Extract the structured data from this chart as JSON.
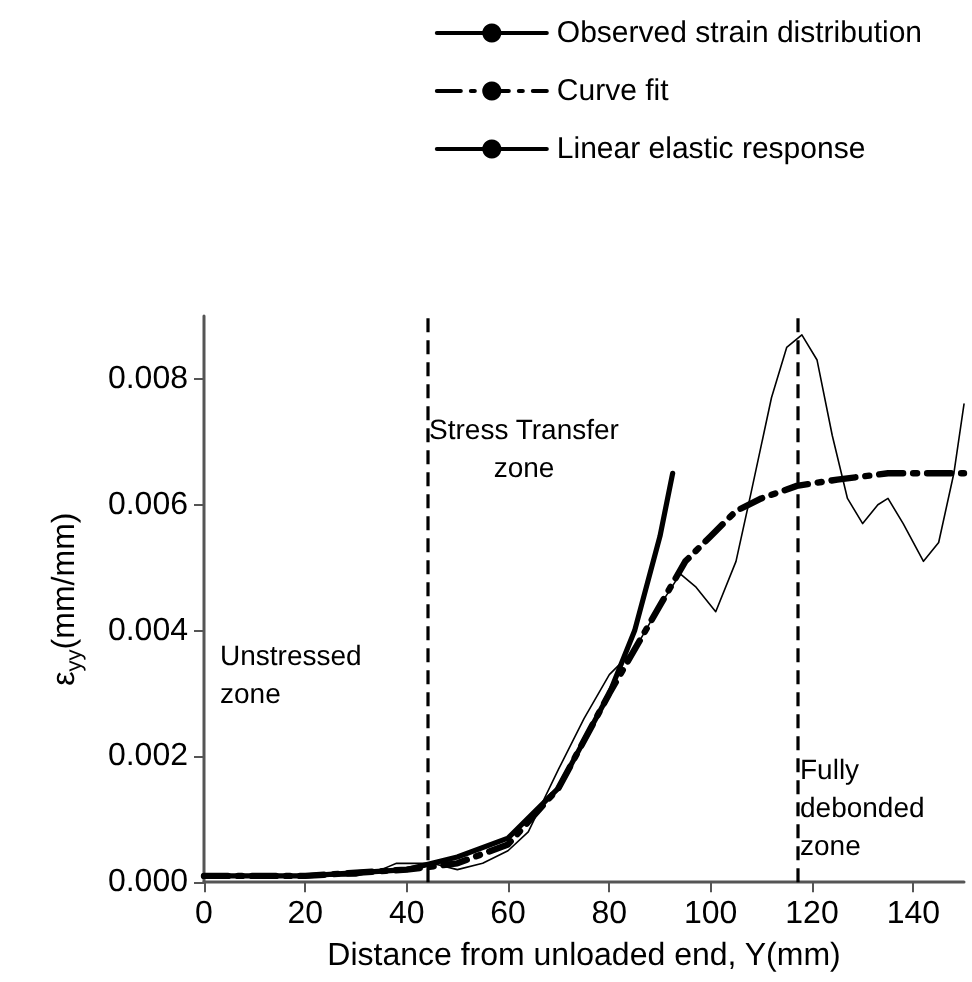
{
  "chart_data": {
    "type": "line",
    "xlabel": "Distance from unloaded end, Y(mm)",
    "ylabel": "ε$_{yy}$(mm/mm)",
    "xlim": [
      0,
      150
    ],
    "xticks": [
      0,
      20,
      40,
      60,
      80,
      100,
      120,
      140
    ],
    "ylim": [
      0,
      0.009
    ],
    "yticks": [
      {
        "value": 0,
        "label": "0.000"
      },
      {
        "value": 0.002,
        "label": "0.002"
      },
      {
        "value": 0.004,
        "label": "0.004"
      },
      {
        "value": 0.006,
        "label": "0.006"
      },
      {
        "value": 0.008,
        "label": "0.008"
      }
    ],
    "grid": false,
    "legend": "top right",
    "marker": "none",
    "series": [
      {
        "name": "Observed strain distribution",
        "color": "#000000",
        "line_style": "solid",
        "x": [
          0,
          10,
          20,
          30,
          35,
          38,
          45,
          50,
          55,
          60,
          64,
          70,
          75,
          80,
          85,
          90,
          94,
          97,
          101,
          105,
          108,
          112,
          115,
          118,
          121,
          124,
          127,
          130,
          133,
          135,
          138,
          142,
          145,
          148,
          150
        ],
        "values": [
          0.0001,
          0.0001,
          0.0001,
          0.0001,
          0.0002,
          0.0003,
          0.0003,
          0.0002,
          0.0003,
          0.0005,
          0.0008,
          0.0018,
          0.0026,
          0.0033,
          0.0037,
          0.0044,
          0.0049,
          0.0047,
          0.0043,
          0.0051,
          0.0062,
          0.0077,
          0.0085,
          0.0087,
          0.0083,
          0.0071,
          0.0061,
          0.0057,
          0.006,
          0.0061,
          0.0057,
          0.0051,
          0.0054,
          0.0065,
          0.0076
        ]
      },
      {
        "name": "Curve fit",
        "color": "#000000",
        "line_style": "dashed",
        "x": [
          0,
          20,
          40,
          50,
          60,
          70,
          80,
          85,
          90,
          95,
          100,
          105,
          110,
          117,
          125,
          135,
          150
        ],
        "values": [
          0.0001,
          0.0001,
          0.0002,
          0.0003,
          0.0006,
          0.0015,
          0.003,
          0.0037,
          0.0044,
          0.0051,
          0.0055,
          0.0059,
          0.0061,
          0.0063,
          0.0064,
          0.0065,
          0.0065
        ]
      },
      {
        "name": "Linear elastic response",
        "color": "#000000",
        "line_style": "solid",
        "x": [
          0,
          20,
          40,
          50,
          60,
          70,
          80,
          85,
          90,
          92.5
        ],
        "values": [
          0.0001,
          0.0001,
          0.0002,
          0.0004,
          0.0007,
          0.0015,
          0.003,
          0.004,
          0.0055,
          0.0065
        ]
      }
    ],
    "ref_lines": [
      {
        "axis": "x",
        "value": 44,
        "line_style": "dashed",
        "color": "#000000"
      },
      {
        "axis": "x",
        "value": 117,
        "line_style": "dashed",
        "color": "#000000"
      }
    ],
    "annotations": [
      "Unstressed\nzone",
      "Stress Transfer\nzone",
      "Fully\ndebonded\nzone"
    ]
  }
}
